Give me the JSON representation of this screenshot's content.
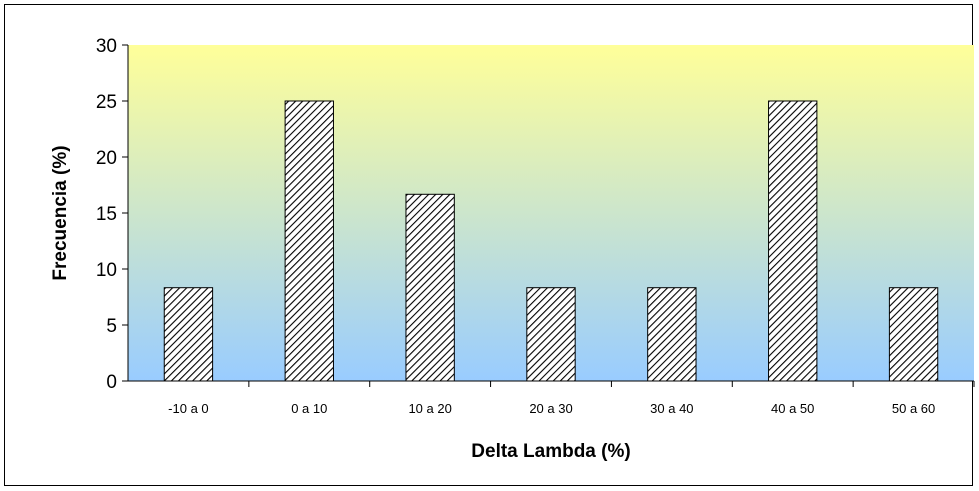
{
  "chart_data": {
    "type": "bar",
    "xlabel": "Delta Lambda (%)",
    "ylabel": "Frecuencia (%)",
    "categories": [
      "-10 a 0",
      "0 a 10",
      "10 a 20",
      "20 a 30",
      "30 a 40",
      "40 a 50",
      "50 a 60"
    ],
    "values": [
      8.33,
      25.0,
      16.67,
      8.33,
      8.33,
      25.0,
      8.33
    ],
    "ylim": [
      0,
      30
    ],
    "yticks": [
      "0",
      "5",
      "10",
      "15",
      "20",
      "25",
      "30"
    ],
    "grid": false,
    "legend": "none",
    "bar_pattern": "diagonal-hatch",
    "colors": {
      "plot_top": "#FFFF99",
      "plot_bottom": "#99CCFF",
      "bar_fill": "#FFFFFF",
      "hatch": "#000000"
    }
  }
}
